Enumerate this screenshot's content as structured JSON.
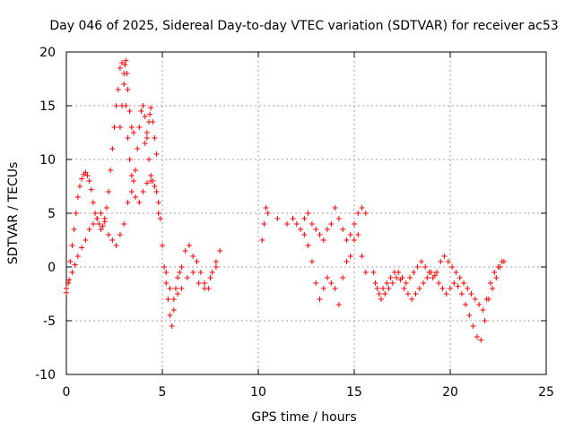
{
  "chart_data": {
    "type": "scatter",
    "title": "Day 046 of 2025, Sidereal Day-to-day VTEC variation (SDTVAR) for receiver ac53",
    "xlabel": "GPS time / hours",
    "ylabel": "SDTVAR / TECUs",
    "xlim": [
      0,
      25
    ],
    "ylim": [
      -10,
      20
    ],
    "xticks": [
      0,
      5,
      10,
      15,
      20,
      25
    ],
    "yticks": [
      -10,
      -5,
      0,
      5,
      10,
      15,
      20
    ],
    "grid": true,
    "marker": "+",
    "color": "#ff0000",
    "series": [
      {
        "name": "SDTVAR",
        "x": [
          0.0,
          0.1,
          0.2,
          0.3,
          0.4,
          0.5,
          0.6,
          0.7,
          0.8,
          0.9,
          1.0,
          1.1,
          1.2,
          1.3,
          1.4,
          1.5,
          1.6,
          1.7,
          1.8,
          1.9,
          2.0,
          2.1,
          2.2,
          2.3,
          2.4,
          2.5,
          2.6,
          2.7,
          2.8,
          2.9,
          3.0,
          3.1,
          3.2,
          3.3,
          3.4,
          3.5,
          3.6,
          3.7,
          3.8,
          3.9,
          4.0,
          4.1,
          4.2,
          4.3,
          4.4,
          4.5,
          4.6,
          4.7,
          4.8,
          4.9,
          5.0,
          5.1,
          5.2,
          5.3,
          5.4,
          5.5,
          5.6,
          5.7,
          5.8,
          5.9,
          6.0,
          6.2,
          6.4,
          6.6,
          6.8,
          7.0,
          7.2,
          7.4,
          7.6,
          7.8,
          8.0,
          0.0,
          0.15,
          0.3,
          0.45,
          0.6,
          0.8,
          1.0,
          1.2,
          1.4,
          1.6,
          1.8,
          2.0,
          2.2,
          2.4,
          2.6,
          2.8,
          3.0,
          3.2,
          3.4,
          3.6,
          3.8,
          4.0,
          4.2,
          4.4,
          4.6,
          4.8,
          5.0,
          5.2,
          5.4,
          5.6,
          5.8,
          6.0,
          6.3,
          6.6,
          6.9,
          7.2,
          7.5,
          7.8,
          2.8,
          2.9,
          3.0,
          3.05,
          3.1,
          3.15,
          3.2,
          3.3,
          3.4,
          3.5,
          4.1,
          4.2,
          4.3,
          4.35,
          4.4,
          4.5,
          4.6,
          4.7,
          10.2,
          10.3,
          10.4,
          10.5,
          11.0,
          11.5,
          11.8,
          12.0,
          12.2,
          12.4,
          12.6,
          12.8,
          13.0,
          13.2,
          13.4,
          13.6,
          13.8,
          14.0,
          14.2,
          14.4,
          14.6,
          14.8,
          15.0,
          15.2,
          15.4,
          15.6,
          12.4,
          12.6,
          12.8,
          13.0,
          13.2,
          13.4,
          13.6,
          13.8,
          14.0,
          14.2,
          14.4,
          14.6,
          14.8,
          15.0,
          15.2,
          15.4,
          15.6,
          16.0,
          16.2,
          16.4,
          16.6,
          16.8,
          17.0,
          17.2,
          17.4,
          17.6,
          17.8,
          18.0,
          18.2,
          18.4,
          18.6,
          18.8,
          19.0,
          19.2,
          19.4,
          19.6,
          19.8,
          20.0,
          20.2,
          20.4,
          20.6,
          20.8,
          21.0,
          21.2,
          21.4,
          21.6,
          21.8,
          22.0,
          22.2,
          22.4,
          22.6,
          22.8,
          16.1,
          16.3,
          16.5,
          16.7,
          16.9,
          17.1,
          17.3,
          17.5,
          17.7,
          17.9,
          18.1,
          18.3,
          18.5,
          18.7,
          18.9,
          19.1,
          19.3,
          19.5,
          19.7,
          19.9,
          20.1,
          20.3,
          20.5,
          20.7,
          20.9,
          21.1,
          21.3,
          21.5,
          21.7,
          21.9,
          22.1,
          22.3,
          22.5,
          22.7
        ],
        "y": [
          -2.4,
          -1.5,
          0.5,
          2.0,
          3.5,
          5.0,
          6.5,
          7.5,
          8.2,
          8.6,
          8.8,
          8.5,
          8.0,
          7.2,
          6.0,
          5.0,
          4.5,
          4.0,
          3.5,
          3.8,
          4.2,
          5.5,
          7.0,
          9.0,
          11.0,
          13.0,
          15.0,
          16.5,
          18.5,
          19.0,
          18.0,
          15.0,
          12.0,
          10.0,
          8.5,
          8.0,
          9.0,
          11.0,
          13.0,
          14.5,
          15.0,
          14.0,
          12.0,
          10.0,
          8.5,
          8.0,
          7.5,
          7.0,
          6.0,
          4.5,
          2.0,
          0.0,
          -1.5,
          -3.0,
          -4.5,
          -5.5,
          -4.0,
          -2.0,
          -1.0,
          -0.5,
          0.0,
          1.5,
          2.0,
          1.0,
          0.5,
          -0.5,
          -1.5,
          -2.0,
          -0.5,
          0.5,
          1.5,
          -2.0,
          -1.2,
          -0.5,
          0.2,
          1.0,
          1.8,
          2.5,
          3.5,
          4.0,
          4.5,
          5.0,
          4.5,
          3.0,
          2.5,
          2.0,
          3.0,
          4.0,
          6.0,
          7.0,
          6.5,
          6.0,
          7.0,
          7.8,
          8.0,
          7.5,
          5.0,
          2.0,
          -0.5,
          -2.0,
          -3.0,
          -2.5,
          -2.0,
          -1.0,
          -0.5,
          -1.5,
          -2.0,
          -1.0,
          0.0,
          13.0,
          15.0,
          17.0,
          18.8,
          19.2,
          18.0,
          16.5,
          14.5,
          13.0,
          12.5,
          11.5,
          12.5,
          13.5,
          14.2,
          14.8,
          13.5,
          12.0,
          10.5,
          2.5,
          4.0,
          5.5,
          5.0,
          4.5,
          4.0,
          4.5,
          4.0,
          3.5,
          4.5,
          5.0,
          4.0,
          3.5,
          3.0,
          2.5,
          3.5,
          4.0,
          5.5,
          4.5,
          3.5,
          2.5,
          3.0,
          4.0,
          5.0,
          5.5,
          5.0,
          3.0,
          2.0,
          0.5,
          -1.5,
          -3.0,
          -2.0,
          -1.0,
          -1.5,
          -2.0,
          -3.5,
          -1.0,
          0.5,
          1.0,
          2.5,
          3.0,
          1.0,
          -0.5,
          -0.5,
          -2.0,
          -3.0,
          -2.5,
          -2.0,
          -1.5,
          -1.0,
          -1.2,
          -2.0,
          -2.5,
          -3.0,
          -2.5,
          -2.0,
          -1.5,
          -1.0,
          -0.5,
          -0.8,
          -1.5,
          -2.0,
          -2.5,
          -2.0,
          -1.5,
          -1.8,
          -2.5,
          -3.5,
          -4.5,
          -5.5,
          -6.5,
          -6.8,
          -5.0,
          -3.0,
          -2.0,
          -1.0,
          0.0,
          0.5,
          -1.5,
          -2.5,
          -2.0,
          -1.5,
          -1.0,
          -0.5,
          -0.5,
          -1.0,
          -1.5,
          -1.0,
          -0.5,
          0.0,
          0.5,
          0.0,
          -0.5,
          -1.0,
          -0.5,
          0.5,
          1.0,
          0.5,
          0.0,
          -0.5,
          -1.0,
          -1.5,
          -2.0,
          -2.5,
          -3.0,
          -3.5,
          -4.0,
          -3.0,
          -1.5,
          -0.5,
          0.0,
          0.5
        ]
      }
    ]
  }
}
